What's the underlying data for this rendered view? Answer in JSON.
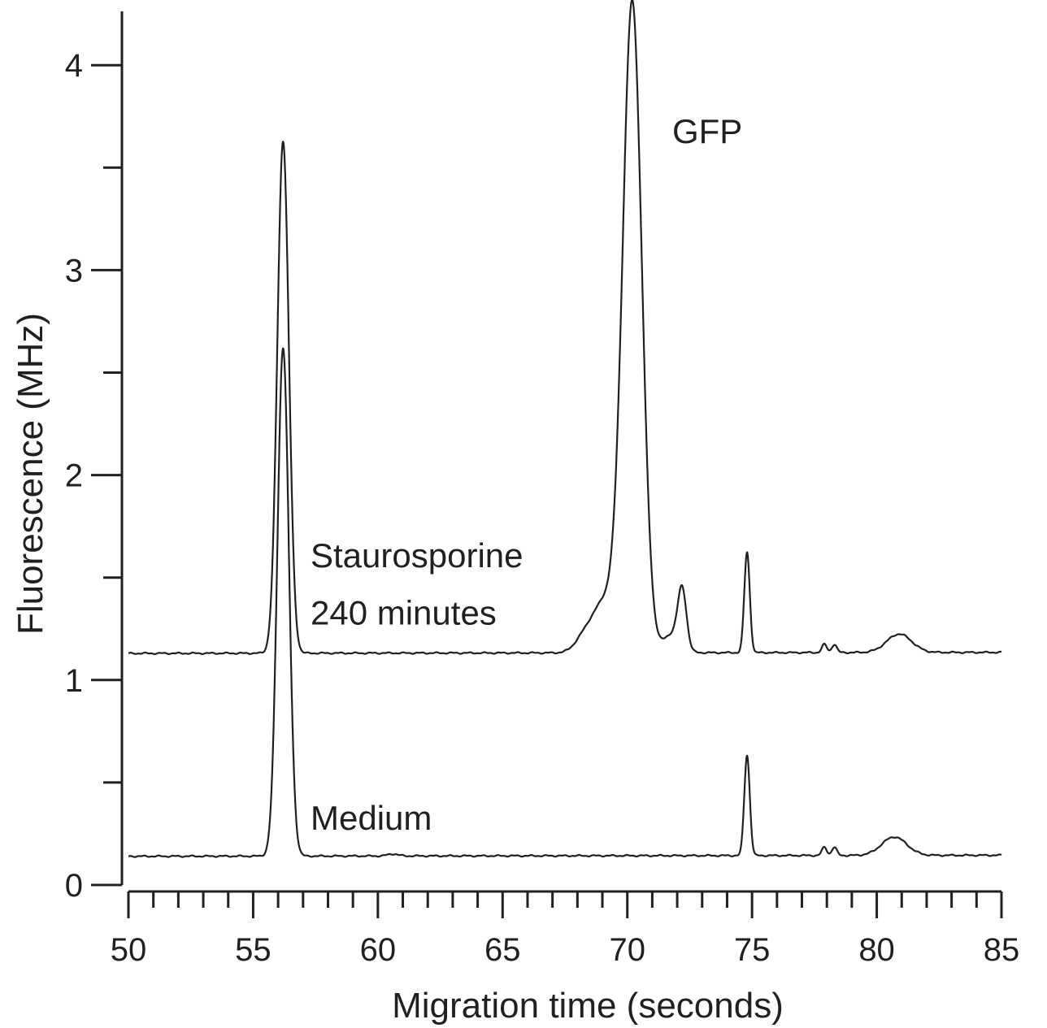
{
  "chart_data": {
    "type": "line",
    "xlabel": "Migration time  (seconds)",
    "ylabel": "Fluorescence  (MHz)",
    "xlim": [
      50,
      85
    ],
    "ylim": [
      0,
      4.25
    ],
    "x_ticks_major": [
      50,
      55,
      60,
      65,
      70,
      75,
      80,
      85
    ],
    "x_ticks_minor_step": 1,
    "y_ticks_major": [
      0,
      1,
      2,
      3,
      4
    ],
    "y_ticks_minor_step": 0.5,
    "grid": false,
    "colors": {
      "line": "#231f20",
      "axis": "#231f20",
      "background": "#ffffff"
    },
    "series": [
      {
        "name": "Staurosporine 240 minutes",
        "baseline": 1.13,
        "end_baseline": 1.135,
        "peaks": [
          {
            "center": 56.2,
            "height": 2.5,
            "sigma": 0.23
          },
          {
            "center": 68.2,
            "height": 0.04,
            "sigma": 0.35
          },
          {
            "center": 70.2,
            "height": 3.15,
            "sigma": 0.38
          },
          {
            "center": 69.1,
            "height": 0.25,
            "sigma": 0.55
          },
          {
            "center": 71.8,
            "height": 0.09,
            "sigma": 0.35
          },
          {
            "center": 72.2,
            "height": 0.28,
            "sigma": 0.17
          },
          {
            "center": 74.8,
            "height": 0.49,
            "sigma": 0.11
          },
          {
            "center": 77.9,
            "height": 0.04,
            "sigma": 0.1
          },
          {
            "center": 78.3,
            "height": 0.04,
            "sigma": 0.1
          },
          {
            "center": 80.9,
            "height": 0.09,
            "sigma": 0.5
          }
        ]
      },
      {
        "name": "Medium",
        "baseline": 0.14,
        "end_baseline": 0.145,
        "peaks": [
          {
            "center": 56.2,
            "height": 2.48,
            "sigma": 0.23
          },
          {
            "center": 60.6,
            "height": 0.01,
            "sigma": 0.2
          },
          {
            "center": 74.8,
            "height": 0.49,
            "sigma": 0.11
          },
          {
            "center": 77.9,
            "height": 0.04,
            "sigma": 0.1
          },
          {
            "center": 78.3,
            "height": 0.04,
            "sigma": 0.1
          },
          {
            "center": 80.7,
            "height": 0.09,
            "sigma": 0.5
          }
        ]
      }
    ],
    "annotations": [
      {
        "text": "GFP",
        "x": 71.8,
        "y": 3.62
      },
      {
        "text": "Staurosporine",
        "x": 57.3,
        "y": 1.55
      },
      {
        "text": "240 minutes",
        "x": 57.3,
        "y": 1.27
      },
      {
        "text": "Medium",
        "x": 57.3,
        "y": 0.27
      }
    ]
  }
}
